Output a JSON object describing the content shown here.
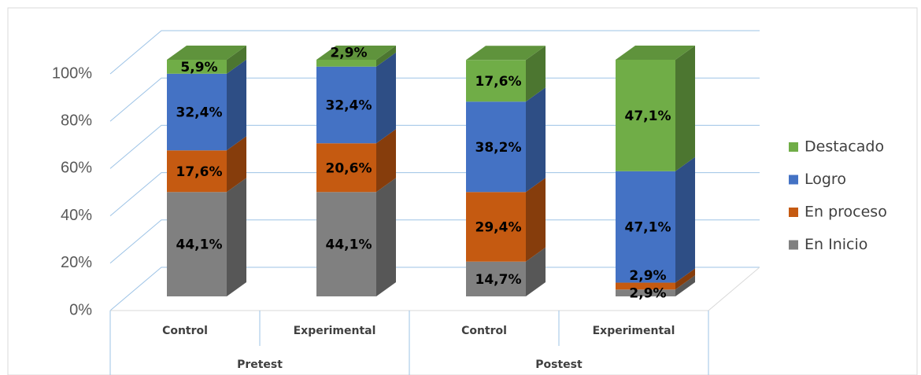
{
  "chart_data": {
    "type": "bar3d_stacked",
    "groups": [
      "Pretest",
      "Postest"
    ],
    "categories": [
      "Control",
      "Experimental",
      "Control",
      "Experimental"
    ],
    "series": [
      {
        "name": "En Inicio",
        "color": "#808080",
        "values": [
          44.1,
          44.1,
          14.7,
          2.9
        ],
        "value_labels": [
          "44,1%",
          "44,1%",
          "14,7%",
          "2,9%"
        ]
      },
      {
        "name": "En proceso",
        "color": "#c55a11",
        "values": [
          17.6,
          20.6,
          29.4,
          2.9
        ],
        "value_labels": [
          "17,6%",
          "20,6%",
          "29,4%",
          "2,9%"
        ]
      },
      {
        "name": "Logro",
        "color": "#4472c4",
        "values": [
          32.4,
          32.4,
          38.2,
          47.1
        ],
        "value_labels": [
          "32,4%",
          "32,4%",
          "38,2%",
          "47,1%"
        ]
      },
      {
        "name": "Destacado",
        "color": "#70ad47",
        "values": [
          5.9,
          2.9,
          17.6,
          47.1
        ],
        "value_labels": [
          "5,9%",
          "2,9%",
          "17,6%",
          "47,1%"
        ]
      }
    ],
    "ylim": [
      0,
      100
    ],
    "yticks": [
      {
        "value": 0,
        "label": "0%"
      },
      {
        "value": 20,
        "label": "20%"
      },
      {
        "value": 40,
        "label": "40%"
      },
      {
        "value": 60,
        "label": "60%"
      },
      {
        "value": 80,
        "label": "80%"
      },
      {
        "value": 100,
        "label": "100%"
      }
    ],
    "grid": true,
    "legend": "right"
  }
}
